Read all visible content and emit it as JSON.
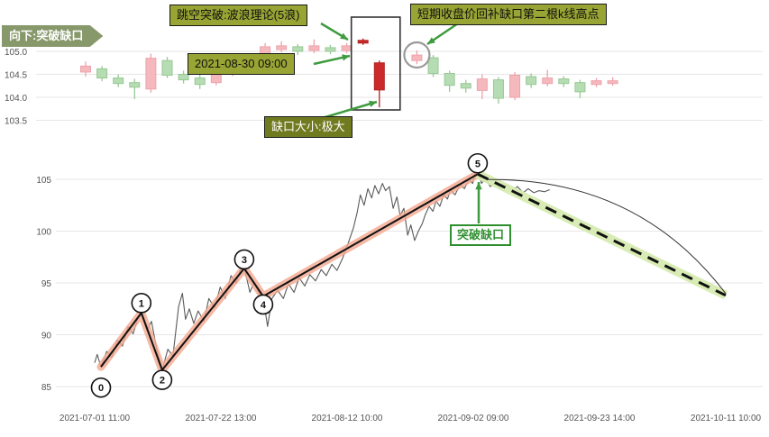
{
  "annotations": {
    "banner": "向下:突破缺口",
    "gap_breakout": "跳空突破:波浪理论(5浪)",
    "datetime": "2021-08-30 09:00",
    "short_term": "短期收盘价回补缺口第二根k线高点",
    "gap_size": "缺口大小:极大",
    "breakout_gap": "突破缺口"
  },
  "colors": {
    "up_fill": "#f5b8bd",
    "up_stroke": "#eda3ab",
    "down_fill": "#b5dcb2",
    "down_stroke": "#97c995",
    "strong_red_fill": "#cc2a2a",
    "strong_red_stroke": "#b02020",
    "arrow_green": "#3f9b3f",
    "wave_glow": "#f3a88e",
    "projection_glow": "#d8ecb2",
    "grid": "#e6e6e6",
    "axis_text": "#555555",
    "price_line": "#5a5a5a"
  },
  "chart_data": [
    {
      "type": "candlestick",
      "title": "",
      "ytick_labels": [
        "105.0",
        "104.5",
        "104.0",
        "103.5"
      ],
      "ytick_values": [
        105.0,
        104.5,
        104.0,
        103.5
      ],
      "highlight": {
        "box_slots": [
          17,
          18
        ],
        "circle_slot": 20.3
      },
      "candles": [
        {
          "slot": 0,
          "color": "pink",
          "o": 104.55,
          "h": 104.78,
          "l": 104.45,
          "c": 104.68
        },
        {
          "slot": 1,
          "color": "green",
          "o": 104.62,
          "h": 104.68,
          "l": 104.35,
          "c": 104.42
        },
        {
          "slot": 2,
          "color": "green",
          "o": 104.42,
          "h": 104.5,
          "l": 104.22,
          "c": 104.3
        },
        {
          "slot": 3,
          "color": "green",
          "o": 104.32,
          "h": 104.4,
          "l": 103.96,
          "c": 104.22
        },
        {
          "slot": 4,
          "color": "pink",
          "o": 104.18,
          "h": 104.95,
          "l": 104.1,
          "c": 104.85
        },
        {
          "slot": 5,
          "color": "green",
          "o": 104.8,
          "h": 104.88,
          "l": 104.42,
          "c": 104.48
        },
        {
          "slot": 6,
          "color": "green",
          "o": 104.5,
          "h": 104.58,
          "l": 104.3,
          "c": 104.38
        },
        {
          "slot": 7,
          "color": "green",
          "o": 104.42,
          "h": 104.5,
          "l": 104.18,
          "c": 104.28
        },
        {
          "slot": 8,
          "color": "pink",
          "o": 104.32,
          "h": 104.62,
          "l": 104.26,
          "c": 104.55
        },
        {
          "slot": 9,
          "color": "pink",
          "o": 104.52,
          "h": 104.78,
          "l": 104.46,
          "c": 104.72
        },
        {
          "slot": 10,
          "color": "green",
          "o": 104.68,
          "h": 104.74,
          "l": 104.5,
          "c": 104.56
        },
        {
          "slot": 11,
          "color": "pink",
          "o": 104.6,
          "h": 105.18,
          "l": 104.54,
          "c": 105.1
        },
        {
          "slot": 12,
          "color": "pink",
          "o": 105.04,
          "h": 105.22,
          "l": 104.98,
          "c": 105.12
        },
        {
          "slot": 13,
          "color": "green",
          "o": 105.1,
          "h": 105.16,
          "l": 104.92,
          "c": 105.0
        },
        {
          "slot": 14,
          "color": "pink",
          "o": 105.02,
          "h": 105.26,
          "l": 104.96,
          "c": 105.12
        },
        {
          "slot": 15,
          "color": "green",
          "o": 105.08,
          "h": 105.14,
          "l": 104.94,
          "c": 105.0
        },
        {
          "slot": 16,
          "color": "pink",
          "o": 105.02,
          "h": 105.18,
          "l": 104.96,
          "c": 105.12
        },
        {
          "slot": 17,
          "color": "red",
          "o": 105.18,
          "h": 105.28,
          "l": 105.14,
          "c": 105.24
        },
        {
          "slot": 18,
          "color": "red",
          "o": 104.75,
          "h": 104.8,
          "l": 103.78,
          "c": 104.16
        },
        {
          "slot": 20.3,
          "color": "pink",
          "o": 104.8,
          "h": 105.02,
          "l": 104.72,
          "c": 104.92
        },
        {
          "slot": 21.3,
          "color": "green",
          "o": 104.86,
          "h": 104.92,
          "l": 104.44,
          "c": 104.52
        },
        {
          "slot": 22.3,
          "color": "green",
          "o": 104.52,
          "h": 104.58,
          "l": 104.12,
          "c": 104.26
        },
        {
          "slot": 23.3,
          "color": "green",
          "o": 104.3,
          "h": 104.38,
          "l": 104.1,
          "c": 104.2
        },
        {
          "slot": 24.3,
          "color": "pink",
          "o": 104.15,
          "h": 104.5,
          "l": 103.96,
          "c": 104.4
        },
        {
          "slot": 25.3,
          "color": "green",
          "o": 104.38,
          "h": 104.44,
          "l": 103.86,
          "c": 103.98
        },
        {
          "slot": 26.3,
          "color": "pink",
          "o": 104.0,
          "h": 104.55,
          "l": 103.94,
          "c": 104.48
        },
        {
          "slot": 27.3,
          "color": "green",
          "o": 104.45,
          "h": 104.52,
          "l": 104.2,
          "c": 104.28
        },
        {
          "slot": 28.3,
          "color": "pink",
          "o": 104.3,
          "h": 104.6,
          "l": 104.24,
          "c": 104.42
        },
        {
          "slot": 29.3,
          "color": "green",
          "o": 104.4,
          "h": 104.46,
          "l": 104.22,
          "c": 104.3
        },
        {
          "slot": 30.3,
          "color": "green",
          "o": 104.32,
          "h": 104.38,
          "l": 103.98,
          "c": 104.12
        },
        {
          "slot": 31.3,
          "color": "pink",
          "o": 104.28,
          "h": 104.42,
          "l": 104.22,
          "c": 104.36
        },
        {
          "slot": 32.3,
          "color": "pink",
          "o": 104.3,
          "h": 104.44,
          "l": 104.25,
          "c": 104.36
        }
      ]
    },
    {
      "type": "line",
      "title": "",
      "ytick_values": [
        105,
        100,
        95,
        90,
        85
      ],
      "xtick_labels": [
        "2021-07-01 11:00",
        "2021-07-22 13:00",
        "2021-08-12 10:00",
        "2021-09-02 09:00",
        "2021-09-23 14:00",
        "2021-10-11 10:00"
      ],
      "waves": [
        {
          "label": "0",
          "t": 0.01,
          "v": 86.9
        },
        {
          "label": "1",
          "t": 0.074,
          "v": 92.1
        },
        {
          "label": "2",
          "t": 0.107,
          "v": 86.6
        },
        {
          "label": "3",
          "t": 0.237,
          "v": 96.4
        },
        {
          "label": "4",
          "t": 0.267,
          "v": 93.7
        },
        {
          "label": "5",
          "t": 0.607,
          "v": 105.5
        }
      ],
      "projection": {
        "t": 1.0,
        "v": 93.8
      },
      "price": [
        [
          0,
          87.3
        ],
        [
          0.004,
          88.1
        ],
        [
          0.01,
          86.9
        ],
        [
          0.019,
          88.4
        ],
        [
          0.027,
          87.8
        ],
        [
          0.036,
          89.5
        ],
        [
          0.044,
          88.9
        ],
        [
          0.053,
          90.8
        ],
        [
          0.061,
          90.1
        ],
        [
          0.069,
          91.7
        ],
        [
          0.074,
          92.1
        ],
        [
          0.083,
          90.4
        ],
        [
          0.09,
          91.3
        ],
        [
          0.099,
          88.4
        ],
        [
          0.107,
          86.6
        ],
        [
          0.116,
          88.6
        ],
        [
          0.124,
          87.9
        ],
        [
          0.133,
          92.7
        ],
        [
          0.139,
          94.0
        ],
        [
          0.144,
          91.5
        ],
        [
          0.15,
          92.5
        ],
        [
          0.157,
          91.1
        ],
        [
          0.164,
          92.3
        ],
        [
          0.173,
          91.3
        ],
        [
          0.181,
          93.5
        ],
        [
          0.19,
          92.6
        ],
        [
          0.199,
          94.6
        ],
        [
          0.207,
          93.5
        ],
        [
          0.216,
          95.7
        ],
        [
          0.224,
          95.0
        ],
        [
          0.231,
          96.3
        ],
        [
          0.237,
          96.5
        ],
        [
          0.246,
          94.1
        ],
        [
          0.253,
          95.1
        ],
        [
          0.26,
          94.0
        ],
        [
          0.267,
          93.6
        ],
        [
          0.274,
          90.8
        ],
        [
          0.281,
          93.5
        ],
        [
          0.29,
          94.3
        ],
        [
          0.299,
          93.5
        ],
        [
          0.307,
          94.9
        ],
        [
          0.316,
          94.1
        ],
        [
          0.324,
          95.5
        ],
        [
          0.333,
          94.7
        ],
        [
          0.341,
          95.8
        ],
        [
          0.35,
          95.2
        ],
        [
          0.359,
          96.3
        ],
        [
          0.367,
          95.7
        ],
        [
          0.376,
          96.8
        ],
        [
          0.384,
          96.2
        ],
        [
          0.393,
          97.4
        ],
        [
          0.401,
          98.7
        ],
        [
          0.41,
          100.3
        ],
        [
          0.416,
          101.8
        ],
        [
          0.421,
          103.5
        ],
        [
          0.427,
          102.5
        ],
        [
          0.433,
          104.1
        ],
        [
          0.439,
          103.2
        ],
        [
          0.444,
          104.4
        ],
        [
          0.45,
          103.6
        ],
        [
          0.456,
          104.6
        ],
        [
          0.461,
          103.9
        ],
        [
          0.467,
          104.3
        ],
        [
          0.473,
          102.2
        ],
        [
          0.479,
          103.3
        ],
        [
          0.484,
          101.5
        ],
        [
          0.49,
          102.2
        ],
        [
          0.496,
          99.6
        ],
        [
          0.501,
          100.6
        ],
        [
          0.507,
          99.1
        ],
        [
          0.513,
          100.0
        ],
        [
          0.519,
          100.7
        ],
        [
          0.524,
          101.6
        ],
        [
          0.53,
          102.4
        ],
        [
          0.536,
          101.9
        ],
        [
          0.541,
          102.9
        ],
        [
          0.547,
          102.4
        ],
        [
          0.553,
          103.5
        ],
        [
          0.559,
          103.1
        ],
        [
          0.564,
          104.0
        ],
        [
          0.571,
          103.5
        ],
        [
          0.579,
          104.5
        ],
        [
          0.586,
          104.1
        ],
        [
          0.593,
          105.0
        ],
        [
          0.599,
          104.6
        ],
        [
          0.603,
          105.8
        ],
        [
          0.606,
          106.8
        ],
        [
          0.609,
          105.5
        ],
        [
          0.613,
          104.6
        ],
        [
          0.619,
          105.1
        ],
        [
          0.627,
          104.3
        ],
        [
          0.636,
          104.7
        ],
        [
          0.644,
          104.0
        ],
        [
          0.653,
          104.5
        ],
        [
          0.661,
          103.9
        ],
        [
          0.67,
          104.3
        ],
        [
          0.679,
          103.7
        ],
        [
          0.687,
          104.1
        ],
        [
          0.696,
          103.7
        ],
        [
          0.704,
          103.9
        ],
        [
          0.713,
          103.8
        ],
        [
          0.721,
          104.0
        ]
      ]
    }
  ]
}
